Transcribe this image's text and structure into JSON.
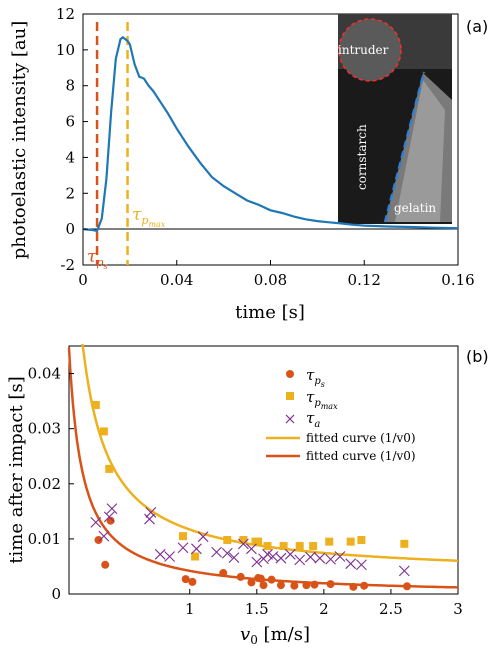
{
  "chart_data": [
    {
      "type": "line",
      "panel_label": "(a)",
      "xlabel": "time [s]",
      "ylabel": "photoelastic intensity [au]",
      "xlim": [
        0,
        0.16
      ],
      "ylim": [
        -2,
        12
      ],
      "xticks": [
        "0",
        "0.04",
        "0.08",
        "0.12",
        "0.16"
      ],
      "yticks": [
        "-2",
        "0",
        "2",
        "4",
        "6",
        "8",
        "10",
        "12"
      ],
      "series": [
        {
          "color": "#1f77b4",
          "x": [
            0.0,
            0.004,
            0.006,
            0.008,
            0.01,
            0.012,
            0.014,
            0.016,
            0.017,
            0.018,
            0.019,
            0.02,
            0.022,
            0.024,
            0.026,
            0.028,
            0.03,
            0.033,
            0.036,
            0.04,
            0.045,
            0.05,
            0.055,
            0.06,
            0.065,
            0.07,
            0.075,
            0.08,
            0.085,
            0.09,
            0.095,
            0.1,
            0.105,
            0.11,
            0.115,
            0.12,
            0.13,
            0.14,
            0.15,
            0.16
          ],
          "y": [
            0.0,
            -0.05,
            -0.1,
            0.6,
            2.8,
            6.5,
            9.5,
            10.6,
            10.7,
            10.6,
            10.5,
            10.3,
            9.2,
            8.5,
            8.4,
            8.0,
            7.7,
            7.1,
            6.5,
            5.6,
            4.6,
            3.7,
            2.9,
            2.4,
            2.0,
            1.6,
            1.35,
            1.05,
            0.9,
            0.7,
            0.55,
            0.45,
            0.38,
            0.32,
            0.25,
            0.2,
            0.15,
            0.12,
            0.08,
            0.05
          ]
        }
      ],
      "vlines": [
        {
          "x": 0.006,
          "color": "#d95319",
          "label_base": "τ",
          "label_sub": "p",
          "label_subsub": "s"
        },
        {
          "x": 0.019,
          "color": "#edb120",
          "label_base": "τ",
          "label_sub": "p",
          "label_subsub": "max"
        }
      ],
      "inset_labels": [
        "intruder",
        "cornstarch",
        "gelatin"
      ]
    },
    {
      "type": "scatter",
      "panel_label": "(b)",
      "xlabel": "v0 [m/s]",
      "ylabel": "time after impact [s]",
      "xlim": [
        0.1,
        3.0
      ],
      "ylim": [
        0,
        0.045
      ],
      "xticks": [
        "1",
        "1.5",
        "2",
        "2.5",
        "3"
      ],
      "yticks": [
        "0",
        "0.01",
        "0.02",
        "0.03",
        "0.04"
      ],
      "legend_position": "top-right",
      "series": [
        {
          "name": "τ_ps",
          "marker": "circle",
          "color": "#d95319",
          "x": [
            0.32,
            0.37,
            0.41,
            0.97,
            1.02,
            1.25,
            1.38,
            1.46,
            1.51,
            1.53,
            1.55,
            1.61,
            1.68,
            1.78,
            1.87,
            1.93,
            2.05,
            2.22,
            2.3,
            2.62
          ],
          "y": [
            0.0098,
            0.0053,
            0.0133,
            0.0027,
            0.0022,
            0.0038,
            0.0031,
            0.0021,
            0.0029,
            0.0028,
            0.0016,
            0.0026,
            0.0016,
            0.0015,
            0.0016,
            0.0017,
            0.0018,
            0.0013,
            0.0015,
            0.0014
          ]
        },
        {
          "name": "τ_pmax",
          "marker": "square",
          "color": "#edb120",
          "x": [
            0.3,
            0.36,
            0.4,
            0.95,
            1.04,
            1.28,
            1.4,
            1.49,
            1.51,
            1.58,
            1.7,
            1.82,
            1.92,
            2.04,
            2.2,
            2.28,
            2.6
          ],
          "y": [
            0.0343,
            0.0295,
            0.0227,
            0.0105,
            0.0068,
            0.0098,
            0.0098,
            0.0095,
            0.0095,
            0.0087,
            0.0087,
            0.0087,
            0.0087,
            0.0095,
            0.0095,
            0.0098,
            0.0091
          ]
        },
        {
          "name": "τ_a",
          "marker": "x",
          "color": "#7e2f8e",
          "x": [
            0.3,
            0.36,
            0.4,
            0.42,
            0.7,
            0.71,
            0.78,
            0.85,
            0.95,
            1.05,
            1.1,
            1.2,
            1.28,
            1.33,
            1.4,
            1.46,
            1.5,
            1.55,
            1.58,
            1.62,
            1.68,
            1.75,
            1.82,
            1.9,
            1.97,
            2.05,
            2.12,
            2.2,
            2.28,
            2.6
          ],
          "y": [
            0.013,
            0.0105,
            0.014,
            0.0155,
            0.0136,
            0.0148,
            0.0072,
            0.0068,
            0.0084,
            0.0082,
            0.0104,
            0.0076,
            0.0074,
            0.0066,
            0.0091,
            0.0082,
            0.0058,
            0.0064,
            0.0072,
            0.0068,
            0.0065,
            0.0072,
            0.0062,
            0.0067,
            0.0065,
            0.0063,
            0.0068,
            0.0055,
            0.0053,
            0.0042
          ]
        },
        {
          "name": "fitted curve (1/v0)",
          "line": true,
          "color": "#edb120",
          "fit": "a/v0",
          "coef": 0.0085,
          "offset": 0.0032
        },
        {
          "name": "fitted curve (1/v0)",
          "line": true,
          "color": "#d95319",
          "fit": "a/v0",
          "coef": 0.0045,
          "offset": -0.0003
        }
      ]
    }
  ]
}
